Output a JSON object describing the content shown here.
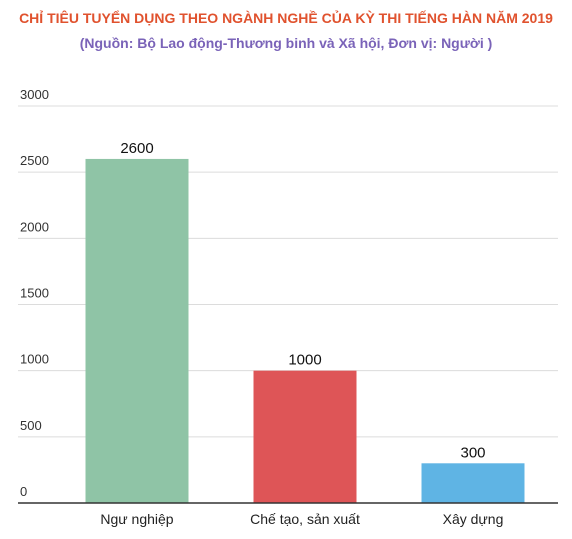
{
  "chart_data": {
    "type": "bar",
    "title": "CHỈ TIÊU TUYỂN DỤNG THEO NGÀNH NGHỀ CỦA KỲ THI TIẾNG HÀN NĂM 2019",
    "subtitle": "(Nguồn: Bộ Lao động-Thương binh và Xã hội, Đơn vị: Người )",
    "categories": [
      "Ngư nghiệp",
      "Chế tạo, sản xuất",
      "Xây dựng"
    ],
    "values": [
      2600,
      1000,
      300
    ],
    "data_labels": [
      "2600",
      "1000",
      "300"
    ],
    "colors": [
      "#8fc4a6",
      "#de5557",
      "#5fb4e4"
    ],
    "y_ticks": [
      "0",
      "500",
      "1000",
      "1500",
      "2000",
      "2500",
      "3000"
    ],
    "ylim": [
      0,
      3000
    ],
    "grid": true,
    "legend": "none",
    "title_color": "#e0522e",
    "subtitle_color": "#7a63b8"
  }
}
